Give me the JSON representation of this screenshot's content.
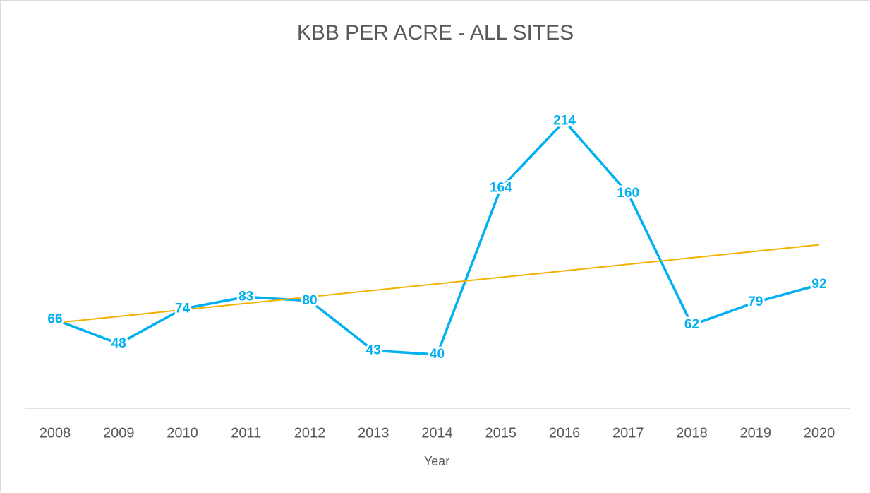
{
  "chart_data": {
    "type": "line",
    "title": "KBB PER ACRE - ALL SITES",
    "x_label": "Year",
    "categories": [
      "2008",
      "2009",
      "2010",
      "2011",
      "2012",
      "2013",
      "2014",
      "2015",
      "2016",
      "2017",
      "2018",
      "2019",
      "2020"
    ],
    "values": [
      66,
      48,
      74,
      83,
      80,
      43,
      40,
      164,
      214,
      160,
      62,
      79,
      92
    ],
    "color": "#00b0f0",
    "data_labels": true,
    "trendline": {
      "type": "linear",
      "color": "#f4b000"
    },
    "ylim": [
      0,
      250
    ]
  }
}
